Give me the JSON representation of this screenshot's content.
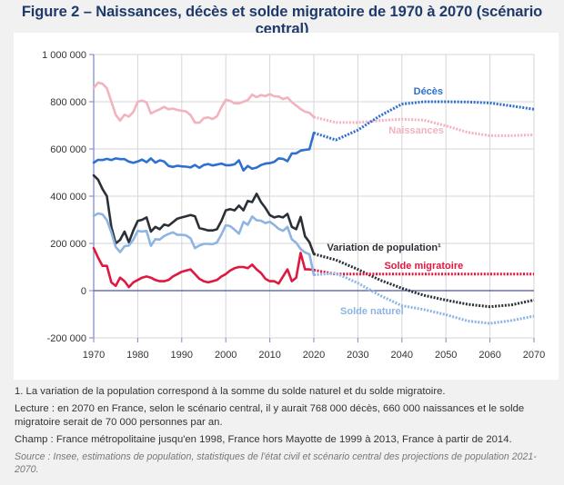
{
  "title": "Figure 2 – Naissances, décès et solde migratoire de 1970 à 2070 (scénario central)",
  "notes": {
    "footnote": "1. La variation de la population correspond à la somme du solde naturel et du solde migratoire.",
    "lecture": "Lecture : en 2070 en France, selon le scénario central, il y aurait 768 000 décès, 660 000 naissances et le solde migratoire serait de 70 000 personnes par an.",
    "champ": "Champ : France métropolitaine jusqu'en 1998, France hors Mayotte de 1999 à 2013, France à partir de 2014.",
    "source": "Source : Insee, estimations de population, statistiques de l'état civil et scénario central des projections de population 2021-2070."
  },
  "chart_data": {
    "type": "line",
    "title": "Figure 2 – Naissances, décès et solde migratoire de 1970 à 2070 (scénario central)",
    "xlabel": "",
    "ylabel": "",
    "xlim": [
      1970,
      2070
    ],
    "ylim": [
      -200000,
      1000000
    ],
    "x_ticks": [
      "1970",
      "1980",
      "1990",
      "2000",
      "2010",
      "2020",
      "2030",
      "2040",
      "2050",
      "2060",
      "2070"
    ],
    "y_ticks": [
      {
        "value": 1000000,
        "label": "1 000 000"
      },
      {
        "value": 800000,
        "label": "800 000"
      },
      {
        "value": 600000,
        "label": "600 000"
      },
      {
        "value": 400000,
        "label": "400 000"
      },
      {
        "value": 200000,
        "label": "200 000"
      },
      {
        "value": 0,
        "label": "0"
      },
      {
        "value": -200000,
        "label": "-200 000"
      }
    ],
    "grid": true,
    "legend": "inline labels",
    "observed_years": [
      1970,
      1971,
      1972,
      1973,
      1974,
      1975,
      1976,
      1977,
      1978,
      1979,
      1980,
      1981,
      1982,
      1983,
      1984,
      1985,
      1986,
      1987,
      1988,
      1989,
      1990,
      1991,
      1992,
      1993,
      1994,
      1995,
      1996,
      1997,
      1998,
      1999,
      2000,
      2001,
      2002,
      2003,
      2004,
      2005,
      2006,
      2007,
      2008,
      2009,
      2010,
      2011,
      2012,
      2013,
      2014,
      2015,
      2016,
      2017,
      2018,
      2019,
      2020
    ],
    "projection_years": [
      2020,
      2025,
      2030,
      2035,
      2040,
      2045,
      2050,
      2055,
      2060,
      2065,
      2070
    ],
    "series": [
      {
        "name": "Naissances",
        "label": "Naissances",
        "color": "#f2b3bf",
        "observed": [
          858000,
          881000,
          876000,
          857000,
          800000,
          745000,
          720000,
          745000,
          737000,
          757000,
          800000,
          805000,
          797000,
          750000,
          760000,
          768000,
          778000,
          768000,
          771000,
          765000,
          762000,
          759000,
          743000,
          712000,
          711000,
          730000,
          734000,
          727000,
          738000,
          776000,
          808000,
          804000,
          793000,
          793000,
          800000,
          807000,
          830000,
          819000,
          828000,
          824000,
          832000,
          823000,
          822000,
          811000,
          818000,
          798000,
          784000,
          769000,
          758000,
          753000,
          735000
        ],
        "projection": [
          735000,
          712000,
          712000,
          720000,
          726000,
          722000,
          698000,
          670000,
          656000,
          656000,
          660000
        ]
      },
      {
        "name": "Décès",
        "label": "Décès",
        "color": "#2f6fce",
        "observed": [
          542000,
          554000,
          553000,
          558000,
          553000,
          560000,
          557000,
          557000,
          546000,
          541000,
          547000,
          555000,
          544000,
          560000,
          542000,
          552000,
          547000,
          528000,
          524000,
          529000,
          526000,
          525000,
          522000,
          532000,
          520000,
          532000,
          536000,
          530000,
          534000,
          538000,
          531000,
          531000,
          535000,
          552000,
          509000,
          528000,
          516000,
          521000,
          532000,
          538000,
          540000,
          545000,
          560000,
          558000,
          548000,
          581000,
          581000,
          593000,
          596000,
          599000,
          668000
        ],
        "projection": [
          668000,
          638000,
          680000,
          740000,
          790000,
          800000,
          800000,
          799000,
          795000,
          782000,
          768000
        ]
      },
      {
        "name": "Variation de population",
        "label": "Variation de population¹",
        "color": "#2b2f36",
        "observed": [
          488000,
          470000,
          430000,
          400000,
          270000,
          200000,
          215000,
          250000,
          205000,
          255000,
          295000,
          300000,
          310000,
          250000,
          270000,
          260000,
          280000,
          275000,
          290000,
          305000,
          310000,
          315000,
          320000,
          315000,
          265000,
          260000,
          255000,
          255000,
          260000,
          295000,
          340000,
          345000,
          340000,
          360000,
          340000,
          380000,
          375000,
          410000,
          375000,
          350000,
          320000,
          310000,
          315000,
          310000,
          325000,
          270000,
          260000,
          312000,
          230000,
          205000,
          155000
        ],
        "projection": [
          155000,
          130000,
          90000,
          45000,
          10000,
          -20000,
          -40000,
          -58000,
          -68000,
          -60000,
          -40000
        ]
      },
      {
        "name": "Solde migratoire",
        "label": "Solde migratoire",
        "color": "#e0173e",
        "observed": [
          180000,
          140000,
          105000,
          105000,
          35000,
          20000,
          55000,
          40000,
          15000,
          35000,
          45000,
          55000,
          60000,
          55000,
          45000,
          40000,
          40000,
          45000,
          60000,
          70000,
          80000,
          85000,
          90000,
          70000,
          50000,
          40000,
          35000,
          40000,
          45000,
          60000,
          70000,
          85000,
          95000,
          100000,
          100000,
          95000,
          110000,
          90000,
          75000,
          50000,
          40000,
          40000,
          30000,
          60000,
          90000,
          40000,
          55000,
          160000,
          90000,
          90000,
          87000
        ],
        "projection": [
          87000,
          70000,
          70000,
          70000,
          70000,
          70000,
          70000,
          70000,
          70000,
          70000,
          70000
        ]
      },
      {
        "name": "Solde naturel",
        "label": "Solde naturel",
        "color": "#8db4e2",
        "observed": [
          316000,
          327000,
          323000,
          299000,
          247000,
          185000,
          163000,
          188000,
          191000,
          216000,
          253000,
          250000,
          253000,
          190000,
          218000,
          216000,
          231000,
          240000,
          247000,
          236000,
          236000,
          234000,
          221000,
          180000,
          191000,
          198000,
          198000,
          197000,
          204000,
          238000,
          277000,
          273000,
          258000,
          241000,
          291000,
          279000,
          314000,
          298000,
          296000,
          286000,
          292000,
          278000,
          262000,
          253000,
          270000,
          217000,
          203000,
          176000,
          162000,
          154000,
          67000
        ],
        "projection": [
          67000,
          74000,
          32000,
          -20000,
          -64000,
          -80000,
          -102000,
          -129000,
          -139000,
          -126000,
          -108000
        ]
      }
    ]
  }
}
